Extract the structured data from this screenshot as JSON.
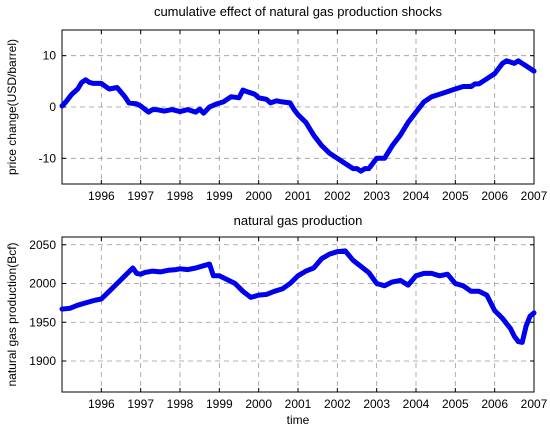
{
  "chart_data": [
    {
      "type": "line",
      "title": "cumulative effect of natural gas production shocks",
      "xlabel": "",
      "ylabel": "price change(USD/barrel)",
      "xlim": [
        1995.0,
        2007.0
      ],
      "ylim": [
        -15,
        15
      ],
      "xticks": [
        1996,
        1997,
        1998,
        1999,
        2000,
        2001,
        2002,
        2003,
        2004,
        2005,
        2006,
        2007
      ],
      "yticks": [
        10,
        0,
        -10
      ],
      "grid": true,
      "color": "#0000ee",
      "series": [
        {
          "x": [
            1995.0,
            1995.1,
            1995.25,
            1995.4,
            1995.5,
            1995.6,
            1995.7,
            1995.8,
            1996.0,
            1996.2,
            1996.4,
            1996.6,
            1996.7,
            1996.9,
            1997.0,
            1997.2,
            1997.3,
            1997.4,
            1997.6,
            1997.8,
            1998.0,
            1998.2,
            1998.4,
            1998.5,
            1998.6,
            1998.75,
            1998.9,
            1999.1,
            1999.3,
            1999.5,
            1999.6,
            1999.7,
            1999.9,
            2000.0,
            2000.2,
            2000.3,
            2000.45,
            2000.6,
            2000.8,
            2000.9,
            2001.0,
            2001.2,
            2001.4,
            2001.6,
            2001.8,
            2002.0,
            2002.2,
            2002.4,
            2002.5,
            2002.6,
            2002.7,
            2002.8,
            2003.0,
            2003.2,
            2003.4,
            2003.6,
            2003.8,
            2004.0,
            2004.2,
            2004.4,
            2004.6,
            2004.8,
            2005.0,
            2005.2,
            2005.4,
            2005.5,
            2005.6,
            2005.7,
            2005.8,
            2006.0,
            2006.2,
            2006.3,
            2006.5,
            2006.6,
            2006.7,
            2006.8,
            2007.0
          ],
          "y": [
            0.2,
            1.0,
            2.5,
            3.5,
            4.8,
            5.3,
            4.8,
            4.6,
            4.6,
            3.5,
            3.8,
            2.0,
            0.8,
            0.6,
            0.2,
            -1.0,
            -0.5,
            -0.5,
            -0.8,
            -0.5,
            -0.9,
            -0.5,
            -1.0,
            -0.4,
            -1.2,
            0.0,
            0.5,
            1.0,
            2.0,
            1.8,
            3.3,
            3.0,
            2.5,
            1.8,
            1.5,
            0.8,
            1.2,
            1.0,
            0.8,
            -0.5,
            -1.5,
            -3.0,
            -5.5,
            -7.5,
            -9.0,
            -10.0,
            -11.0,
            -12.0,
            -12.0,
            -12.5,
            -12.0,
            -12.0,
            -10.0,
            -10.0,
            -7.5,
            -5.5,
            -3.0,
            -1.0,
            1.0,
            2.0,
            2.5,
            3.0,
            3.5,
            4.0,
            4.0,
            4.5,
            4.5,
            5.0,
            5.5,
            6.5,
            8.5,
            9.0,
            8.5,
            9.0,
            8.5,
            8.0,
            7.0
          ]
        }
      ]
    },
    {
      "type": "line",
      "title": "natural gas production",
      "xlabel": "time",
      "ylabel": "natural gas production(Bcf)",
      "xlim": [
        1995.0,
        2007.0
      ],
      "ylim": [
        1860,
        2060
      ],
      "xticks": [
        1996,
        1997,
        1998,
        1999,
        2000,
        2001,
        2002,
        2003,
        2004,
        2005,
        2006,
        2007
      ],
      "yticks": [
        2050,
        2000,
        1950,
        1900
      ],
      "grid": true,
      "color": "#0000ee",
      "series": [
        {
          "x": [
            1995.0,
            1995.2,
            1995.4,
            1995.6,
            1995.8,
            1996.0,
            1996.2,
            1996.4,
            1996.6,
            1996.8,
            1996.9,
            1997.0,
            1997.1,
            1997.3,
            1997.5,
            1997.7,
            1997.9,
            1998.0,
            1998.2,
            1998.4,
            1998.6,
            1998.75,
            1998.85,
            1999.0,
            1999.2,
            1999.4,
            1999.6,
            1999.8,
            2000.0,
            2000.2,
            2000.4,
            2000.6,
            2000.8,
            2001.0,
            2001.2,
            2001.4,
            2001.6,
            2001.8,
            2002.0,
            2002.2,
            2002.4,
            2002.6,
            2002.8,
            2003.0,
            2003.2,
            2003.4,
            2003.6,
            2003.8,
            2004.0,
            2004.2,
            2004.4,
            2004.6,
            2004.8,
            2005.0,
            2005.2,
            2005.4,
            2005.6,
            2005.8,
            2006.0,
            2006.2,
            2006.4,
            2006.5,
            2006.6,
            2006.7,
            2006.8,
            2006.9,
            2007.0
          ],
          "y": [
            1967,
            1968,
            1972,
            1975,
            1978,
            1980,
            1990,
            2000,
            2010,
            2020,
            2013,
            2012,
            2014,
            2016,
            2015,
            2017,
            2018,
            2019,
            2018,
            2020,
            2023,
            2025,
            2010,
            2010,
            2005,
            2000,
            1990,
            1982,
            1985,
            1986,
            1990,
            1993,
            2000,
            2010,
            2016,
            2020,
            2032,
            2038,
            2041,
            2042,
            2030,
            2022,
            2014,
            2000,
            1997,
            2002,
            2004,
            1998,
            2010,
            2013,
            2013,
            2010,
            2012,
            2000,
            1997,
            1990,
            1990,
            1985,
            1965,
            1955,
            1942,
            1932,
            1925,
            1924,
            1945,
            1958,
            1962
          ]
        }
      ]
    }
  ]
}
